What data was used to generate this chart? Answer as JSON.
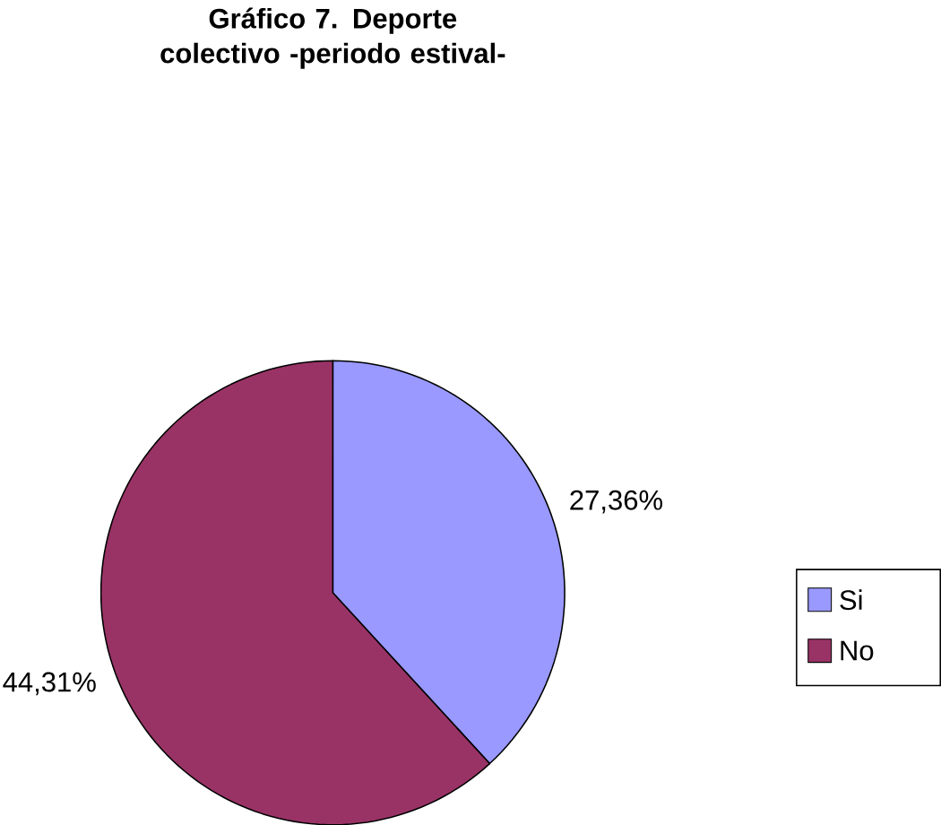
{
  "chart_data": {
    "type": "pie",
    "title": "Gráfico 7. Deporte colectivo -periodo estival-",
    "categories": [
      "Si",
      "No"
    ],
    "values": [
      27.36,
      44.31
    ],
    "colors": [
      "#9999ff",
      "#993366"
    ],
    "value_labels": [
      "27,36%",
      "44,31%"
    ],
    "legend": "right"
  }
}
